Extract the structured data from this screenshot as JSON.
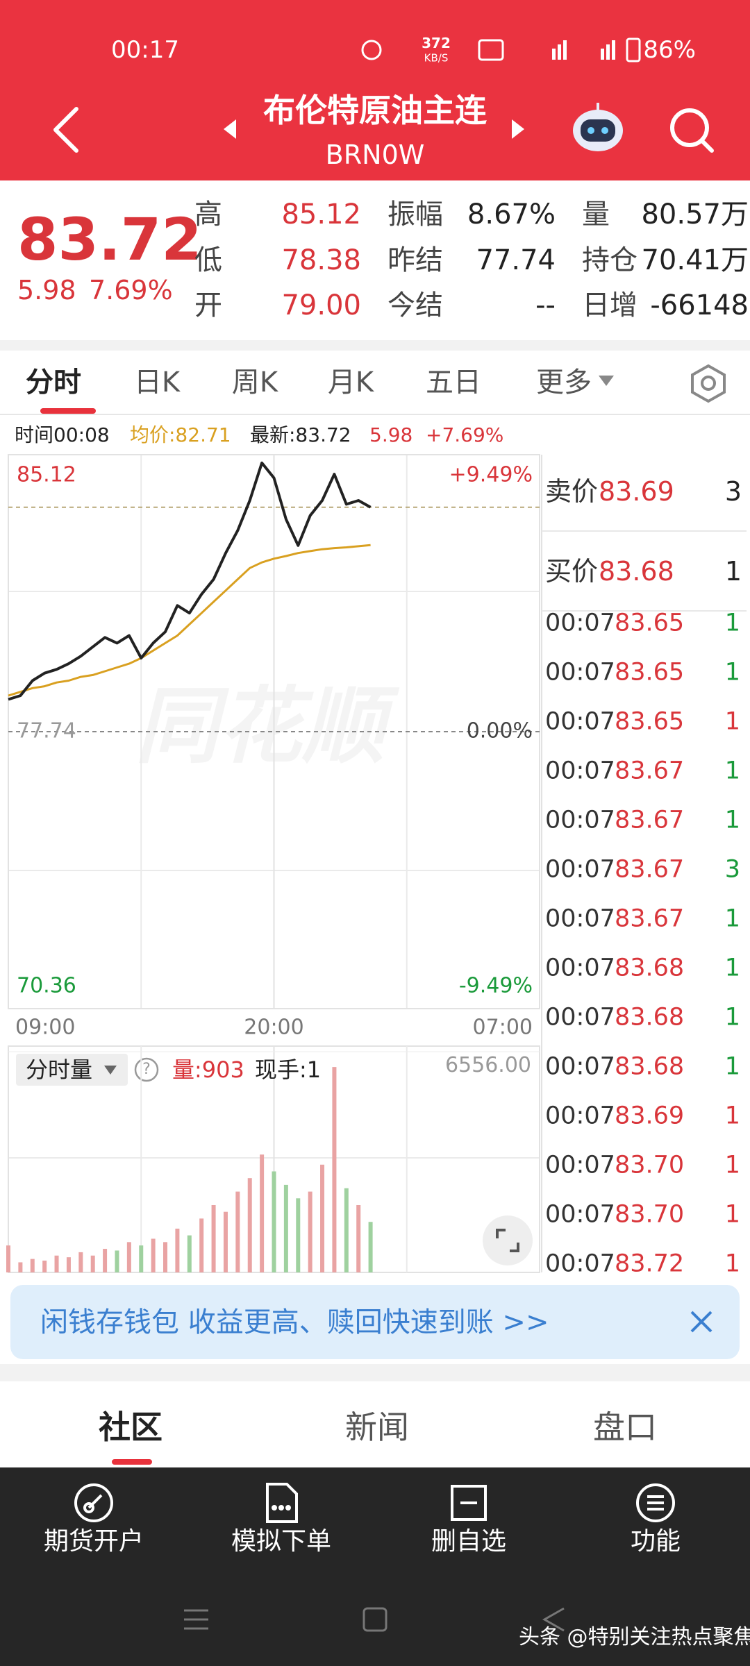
{
  "status_bar": {
    "time": "00:17",
    "net_speed": "372",
    "net_unit": "KB/S",
    "battery": "86%"
  },
  "header": {
    "title": "布伦特原油主连",
    "code": "BRN0W"
  },
  "quote": {
    "price": "83.72",
    "change": "5.98",
    "change_pct": "7.69%",
    "stats": [
      [
        {
          "label": "高",
          "value": "85.12"
        },
        {
          "label": "振幅",
          "value": "8.67%"
        },
        {
          "label": "量",
          "value": "80.57万"
        }
      ],
      [
        {
          "label": "低",
          "value": "78.38"
        },
        {
          "label": "昨结",
          "value": "77.74"
        },
        {
          "label": "持仓",
          "value": "70.41万"
        }
      ],
      [
        {
          "label": "开",
          "value": "79.00"
        },
        {
          "label": "今结",
          "value": "--"
        },
        {
          "label": "日增",
          "value": "-66148"
        }
      ]
    ]
  },
  "tabs": [
    "分时",
    "日K",
    "周K",
    "月K",
    "五日",
    "更多"
  ],
  "info": {
    "time": "时间00:08",
    "avg": "均价:82.71",
    "last": "最新:83.72",
    "change": "5.98",
    "pct": "+7.69%"
  },
  "chart_data": [
    {
      "type": "line",
      "watermark": "同花顺",
      "x": [
        0,
        0.5,
        1,
        1.5,
        2,
        2.5,
        3,
        3.5,
        4,
        4.5,
        5,
        5.5,
        6,
        6.5,
        7,
        7.5,
        8,
        8.5,
        9,
        9.5,
        10,
        10.5,
        11,
        11.5,
        12,
        12.5,
        13,
        13.5,
        14,
        14.5,
        15
      ],
      "xlim": [
        0,
        22
      ],
      "xticks": [
        {
          "value": 0,
          "label": "09:00"
        },
        {
          "value": 11,
          "label": "20:00"
        },
        {
          "value": 22,
          "label": "07:00"
        }
      ],
      "ylim": [
        70.36,
        85.12
      ],
      "yticks": [
        85.12,
        77.74,
        70.36
      ],
      "y2lim": [
        -9.49,
        9.49
      ],
      "y2ticks": [
        {
          "value": 9.49,
          "label": "+9.49%"
        },
        {
          "value": 0,
          "label": "0.00%"
        },
        {
          "value": -9.49,
          "label": "-9.49%"
        }
      ],
      "series": [
        {
          "color": "#222222",
          "values": [
            78.6,
            78.7,
            79.1,
            79.3,
            79.4,
            79.55,
            79.75,
            80.0,
            80.25,
            80.1,
            80.3,
            79.7,
            80.1,
            80.4,
            81.1,
            80.9,
            81.4,
            81.8,
            82.5,
            83.1,
            83.9,
            84.9,
            84.5,
            83.4,
            82.7,
            83.5,
            83.9,
            84.6,
            83.8,
            83.9,
            83.72
          ]
        },
        {
          "color": "#d9a020",
          "values": [
            78.7,
            78.8,
            78.9,
            78.95,
            79.05,
            79.1,
            79.2,
            79.25,
            79.35,
            79.45,
            79.55,
            79.7,
            79.9,
            80.1,
            80.3,
            80.6,
            80.9,
            81.2,
            81.5,
            81.8,
            82.1,
            82.25,
            82.35,
            82.42,
            82.5,
            82.55,
            82.6,
            82.63,
            82.65,
            82.68,
            82.71
          ]
        }
      ]
    },
    {
      "type": "bar",
      "indicator": "分时量",
      "help": "?",
      "volume_label": "量:903",
      "hand_label": "现手:1",
      "x": [
        0,
        0.5,
        1,
        1.5,
        2,
        2.5,
        3,
        3.5,
        4,
        4.5,
        5,
        5.5,
        6,
        6.5,
        7,
        7.5,
        8,
        8.5,
        9,
        9.5,
        10,
        10.5,
        11,
        11.5,
        12,
        12.5,
        13,
        13.5,
        14,
        14.5,
        15
      ],
      "xlim": [
        0,
        22
      ],
      "values": [
        800,
        300,
        400,
        350,
        500,
        450,
        600,
        500,
        700,
        650,
        900,
        800,
        1000,
        900,
        1300,
        1100,
        1600,
        2000,
        1800,
        2400,
        2800,
        3500,
        3000,
        2600,
        2200,
        2400,
        3200,
        6100,
        2500,
        2000,
        1500
      ],
      "ylim": [
        0,
        6556
      ],
      "yticks": [
        {
          "value": 6556,
          "label": "6556.00"
        }
      ],
      "up_color": "#e9a3a3",
      "down_color": "#9fd19f"
    }
  ],
  "order_book": {
    "ask": {
      "label": "卖价",
      "price": "83.69",
      "qty": "3"
    },
    "bid": {
      "label": "买价",
      "price": "83.68",
      "qty": "1"
    },
    "trades": [
      {
        "time": "00:07",
        "price": "83.65",
        "qty": "1",
        "color": "#1a9a3a"
      },
      {
        "time": "00:07",
        "price": "83.65",
        "qty": "1",
        "color": "#1a9a3a"
      },
      {
        "time": "00:07",
        "price": "83.65",
        "qty": "1",
        "color": "#d9353a"
      },
      {
        "time": "00:07",
        "price": "83.67",
        "qty": "1",
        "color": "#1a9a3a"
      },
      {
        "time": "00:07",
        "price": "83.67",
        "qty": "1",
        "color": "#1a9a3a"
      },
      {
        "time": "00:07",
        "price": "83.67",
        "qty": "3",
        "color": "#1a9a3a"
      },
      {
        "time": "00:07",
        "price": "83.67",
        "qty": "1",
        "color": "#1a9a3a"
      },
      {
        "time": "00:07",
        "price": "83.68",
        "qty": "1",
        "color": "#1a9a3a"
      },
      {
        "time": "00:07",
        "price": "83.68",
        "qty": "1",
        "color": "#1a9a3a"
      },
      {
        "time": "00:07",
        "price": "83.68",
        "qty": "1",
        "color": "#1a9a3a"
      },
      {
        "time": "00:07",
        "price": "83.69",
        "qty": "1",
        "color": "#d9353a"
      },
      {
        "time": "00:07",
        "price": "83.70",
        "qty": "1",
        "color": "#d9353a"
      },
      {
        "time": "00:07",
        "price": "83.70",
        "qty": "1",
        "color": "#d9353a"
      },
      {
        "time": "00:07",
        "price": "83.72",
        "qty": "1",
        "color": "#d9353a"
      }
    ]
  },
  "banner": {
    "text": "闲钱存钱包 收益更高、赎回快速到账 >>"
  },
  "bottom_tabs": [
    "社区",
    "新闻",
    "盘口"
  ],
  "nav": [
    "期货开户",
    "模拟下单",
    "删自选",
    "功能"
  ],
  "footer_watermark": "头条 @特别关注热点聚焦"
}
